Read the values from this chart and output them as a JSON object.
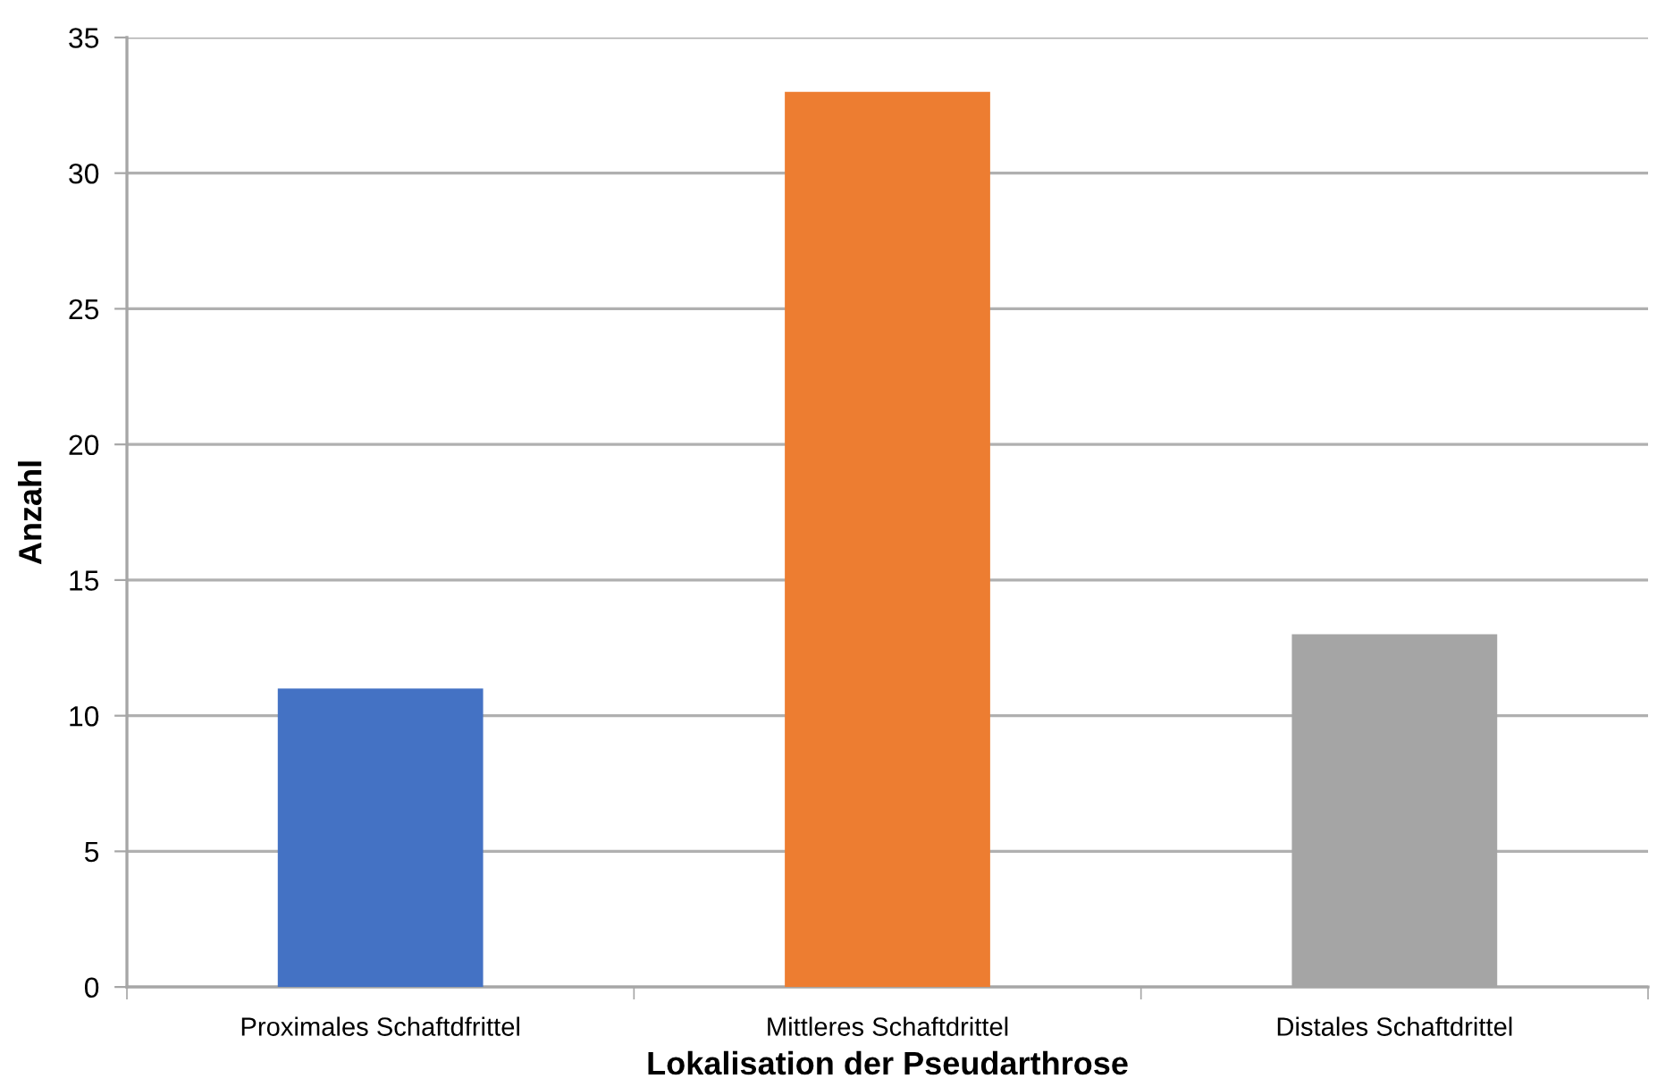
{
  "chart_data": {
    "type": "bar",
    "xlabel": "Lokalisation der Pseudarthrose",
    "ylabel": "Anzahl",
    "categories": [
      "Proximales Schaftdfrittel",
      "Mittleres Schaftdrittel",
      "Distales Schaftdrittel"
    ],
    "values": [
      11,
      33,
      13
    ],
    "colors": [
      "#4472c4",
      "#ed7d31",
      "#a5a5a5"
    ],
    "ylim": [
      0,
      35
    ],
    "yticks": [
      0,
      5,
      10,
      15,
      20,
      25,
      30,
      35
    ],
    "grid": "y"
  }
}
